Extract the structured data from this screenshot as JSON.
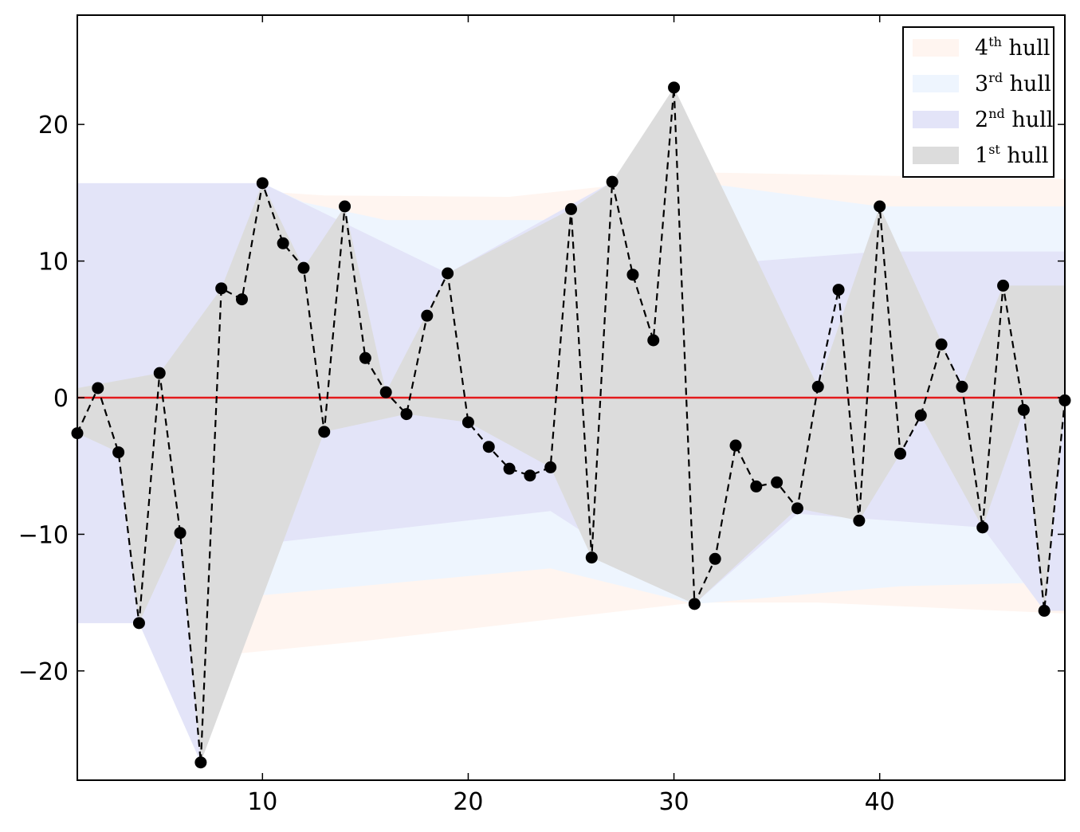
{
  "chart_data": {
    "type": "line",
    "title": "",
    "xlabel": "",
    "ylabel": "",
    "xlim": [
      1,
      49
    ],
    "ylim": [
      -28,
      28
    ],
    "xticks": [
      10,
      20,
      30,
      40
    ],
    "yticks": [
      20,
      10,
      0,
      -10,
      -20
    ],
    "xtick_labels": [
      "10",
      "20",
      "30",
      "40"
    ],
    "ytick_labels": [
      "20",
      "10",
      "0",
      "−10",
      "−20"
    ],
    "grid": false,
    "reference_line": {
      "y": 0,
      "color": "#e41a1c"
    },
    "series": [
      {
        "x": [
          1,
          2,
          3,
          4,
          5,
          6,
          7,
          8,
          9,
          10,
          11,
          12,
          13,
          14,
          15,
          16,
          17,
          18,
          19,
          20,
          21,
          22,
          23,
          24,
          25,
          26,
          27,
          28,
          29,
          30,
          31,
          32,
          33,
          34,
          35,
          36,
          37,
          38,
          39,
          40,
          41,
          42,
          43,
          44,
          45,
          46,
          47,
          48,
          49
        ],
        "values": [
          -2.6,
          0.7,
          -4.0,
          -16.5,
          1.8,
          -9.9,
          -26.7,
          8.0,
          7.2,
          15.7,
          11.3,
          9.5,
          -2.5,
          14.0,
          2.9,
          0.4,
          -1.2,
          6.0,
          9.1,
          -1.8,
          -3.6,
          -5.2,
          -5.7,
          -5.1,
          13.8,
          -11.7,
          15.8,
          9.0,
          4.2,
          22.7,
          -15.1,
          -11.8,
          -3.5,
          -6.5,
          -6.2,
          -8.1,
          0.8,
          7.9,
          -9.0,
          14.0,
          -4.1,
          -1.3,
          3.9,
          0.8,
          -9.5,
          8.2,
          -0.9,
          -15.6,
          -0.2
        ],
        "style": "dashed-with-markers",
        "color": "#000000"
      }
    ],
    "hulls": [
      {
        "label_base": "4",
        "label_sup": "th",
        "label_word": "hull",
        "color": "#fff5f0",
        "upper": [
          [
            11,
            15.0
          ],
          [
            13,
            14.8
          ],
          [
            22,
            14.7
          ],
          [
            30,
            16.0
          ],
          [
            31,
            16.5
          ],
          [
            49,
            16.0
          ]
        ],
        "lower": [
          [
            1,
            -16.5
          ],
          [
            4,
            -16.5
          ],
          [
            7,
            -19.0
          ],
          [
            15,
            -17.8
          ],
          [
            31,
            -15.0
          ],
          [
            37,
            -15.0
          ],
          [
            49,
            -15.8
          ]
        ]
      },
      {
        "label_base": "3",
        "label_sup": "rd",
        "label_word": "hull",
        "color": "#eef5fe",
        "upper": [
          [
            1,
            15.7
          ],
          [
            10,
            15.7
          ],
          [
            12,
            14.3
          ],
          [
            16,
            13.0
          ],
          [
            25,
            13.0
          ],
          [
            27,
            15.8
          ],
          [
            30,
            16.0
          ],
          [
            40,
            14.0
          ],
          [
            49,
            14.0
          ]
        ],
        "lower": [
          [
            1,
            -16.5
          ],
          [
            4,
            -16.5
          ],
          [
            7,
            -26.7
          ],
          [
            9,
            -14.6
          ],
          [
            24,
            -12.5
          ],
          [
            31,
            -15.1
          ],
          [
            41,
            -13.8
          ],
          [
            49,
            -13.5
          ]
        ]
      },
      {
        "label_base": "2",
        "label_sup": "nd",
        "label_word": "hull",
        "color": "#e3e4f8",
        "upper": [
          [
            1,
            15.7
          ],
          [
            10,
            15.7
          ],
          [
            19,
            9.1
          ],
          [
            27,
            15.8
          ],
          [
            29,
            9.0
          ],
          [
            30,
            22.7
          ],
          [
            34,
            10.0
          ],
          [
            40,
            10.7
          ],
          [
            49,
            10.7
          ]
        ],
        "lower": [
          [
            1,
            -16.5
          ],
          [
            4,
            -16.5
          ],
          [
            7,
            -26.7
          ],
          [
            10,
            -10.7
          ],
          [
            24,
            -8.3
          ],
          [
            31,
            -15.1
          ],
          [
            36,
            -8.5
          ],
          [
            45,
            -9.5
          ],
          [
            48,
            -15.6
          ],
          [
            49,
            -15.6
          ]
        ]
      },
      {
        "label_base": "1",
        "label_sup": "st",
        "label_word": "hull",
        "color": "#dcdcdc",
        "upper": [
          [
            1,
            0.7
          ],
          [
            5,
            1.8
          ],
          [
            8,
            8.0
          ],
          [
            10,
            15.7
          ],
          [
            12,
            9.5
          ],
          [
            14,
            14.0
          ],
          [
            16,
            0.4
          ],
          [
            19,
            9.1
          ],
          [
            25,
            13.8
          ],
          [
            27,
            15.8
          ],
          [
            30,
            22.7
          ],
          [
            37,
            0.8
          ],
          [
            40,
            14.0
          ],
          [
            44,
            0.8
          ],
          [
            46,
            8.2
          ],
          [
            49,
            8.2
          ]
        ],
        "lower": [
          [
            1,
            -2.6
          ],
          [
            3,
            -4.0
          ],
          [
            4,
            -16.5
          ],
          [
            6,
            -9.9
          ],
          [
            7,
            -26.7
          ],
          [
            13,
            -2.5
          ],
          [
            17,
            -1.2
          ],
          [
            20,
            -1.8
          ],
          [
            24,
            -5.1
          ],
          [
            26,
            -11.7
          ],
          [
            31,
            -15.1
          ],
          [
            36,
            -8.1
          ],
          [
            39,
            -9.0
          ],
          [
            41,
            -4.1
          ],
          [
            42,
            -1.3
          ],
          [
            45,
            -9.5
          ],
          [
            47,
            -0.9
          ],
          [
            48,
            -15.6
          ],
          [
            49,
            -0.2
          ]
        ]
      }
    ],
    "legend": {
      "placement": "top-right",
      "order": [
        0,
        1,
        2,
        3
      ]
    }
  }
}
